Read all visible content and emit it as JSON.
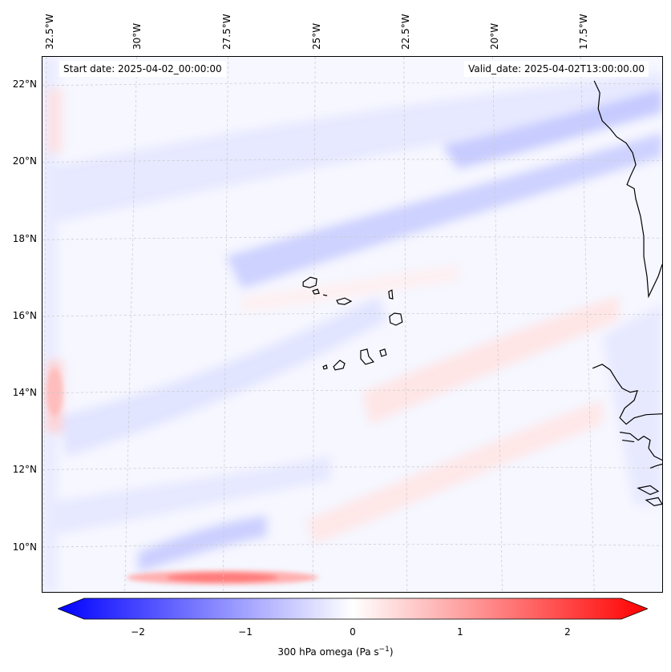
{
  "map": {
    "lon_labels": [
      "32.5°W",
      "30°W",
      "27.5°W",
      "25°W",
      "22.5°W",
      "20°W",
      "17.5°W"
    ],
    "lat_labels": [
      "22°N",
      "20°N",
      "18°N",
      "16°N",
      "14°N",
      "12°N",
      "10°N"
    ],
    "start_date": "Start date: 2025-04-02_00:00:00",
    "valid_date": "Valid_date: 2025-04-02T13:00:00.00",
    "variable": "300 hPa omega",
    "units_base": "(Pa s",
    "units_exp": "−1",
    "units_close": ")",
    "extent": {
      "lon_min": -32.6,
      "lon_max": -15.3,
      "lat_min": 8.9,
      "lat_max": 22.8
    },
    "colormap": "bwr",
    "colors": {
      "negative": "#0000ff",
      "zero": "#ffffff",
      "positive": "#ff0000",
      "coastline": "#000000",
      "gridline": "#c8c8c8"
    }
  },
  "colorbar": {
    "min": -2.5,
    "max": 2.5,
    "extend": "both",
    "ticks": [
      "−2",
      "−1",
      "0",
      "1",
      "2"
    ],
    "tick_values": [
      -2,
      -1,
      0,
      1,
      2
    ]
  }
}
